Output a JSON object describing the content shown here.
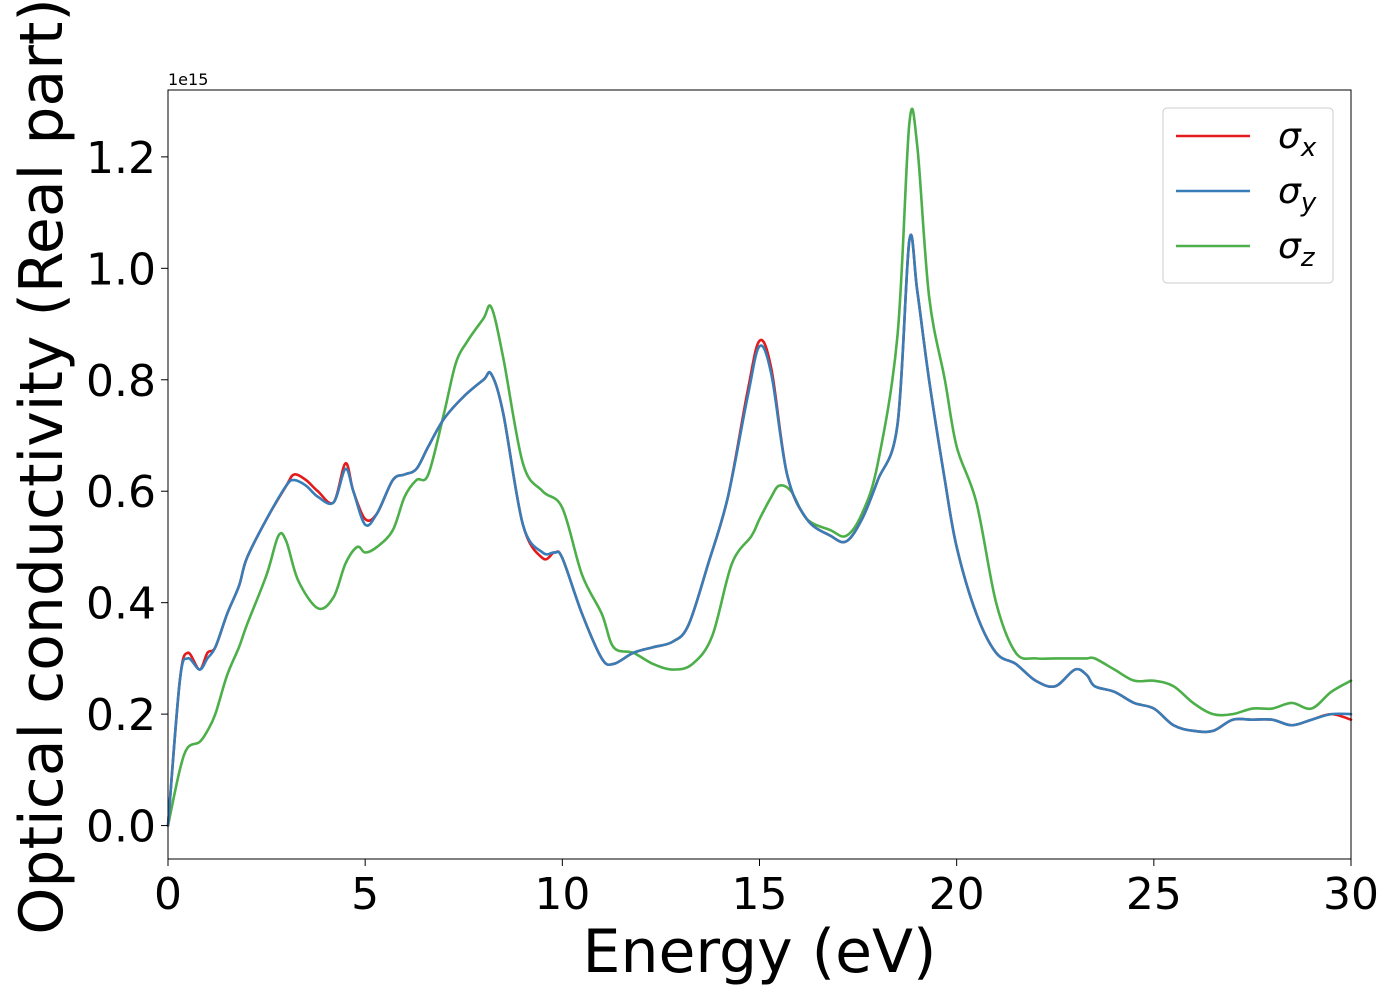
{
  "chart_data": {
    "type": "line",
    "xlabel": "Energy (eV)",
    "ylabel": "Optical conductivity (Real part)",
    "offset_text": "1e15",
    "xlim": [
      0,
      30
    ],
    "ylim": [
      -0.06,
      1.32
    ],
    "xticks": [
      0,
      5,
      10,
      15,
      20,
      25,
      30
    ],
    "xtick_labels": [
      "0",
      "5",
      "10",
      "15",
      "20",
      "25",
      "30"
    ],
    "yticks": [
      0.0,
      0.2,
      0.4,
      0.6,
      0.8,
      1.0,
      1.2
    ],
    "ytick_labels": [
      "0.0",
      "0.2",
      "0.4",
      "0.6",
      "0.8",
      "1.0",
      "1.2"
    ],
    "grid": false,
    "legend_position": "top-right",
    "series": [
      {
        "name": "σx",
        "symbol": "σ",
        "subscript": "x",
        "color": "#e41a1c",
        "x": [
          0,
          0.3,
          0.5,
          0.8,
          1.0,
          1.2,
          1.5,
          1.8,
          2.0,
          2.5,
          3.0,
          3.2,
          3.5,
          3.8,
          4.2,
          4.5,
          4.7,
          5.0,
          5.3,
          5.7,
          6.0,
          6.3,
          6.6,
          7.0,
          7.5,
          8.0,
          8.2,
          8.5,
          9.0,
          9.5,
          9.8,
          10.0,
          10.5,
          11.0,
          11.3,
          11.8,
          12.3,
          12.8,
          13.2,
          13.7,
          14.2,
          14.7,
          15.0,
          15.3,
          15.7,
          16.2,
          16.8,
          17.2,
          17.6,
          18.0,
          18.5,
          18.8,
          19.0,
          19.3,
          19.7,
          20.0,
          20.5,
          21.0,
          21.5,
          22.0,
          22.5,
          23.0,
          23.3,
          23.5,
          24.0,
          24.5,
          25.0,
          25.5,
          26.0,
          26.5,
          27.0,
          27.5,
          28.0,
          28.5,
          29.0,
          29.5,
          30.0
        ],
        "y": [
          0.0,
          0.26,
          0.31,
          0.28,
          0.31,
          0.32,
          0.38,
          0.43,
          0.48,
          0.55,
          0.61,
          0.63,
          0.62,
          0.6,
          0.58,
          0.65,
          0.6,
          0.55,
          0.56,
          0.62,
          0.63,
          0.64,
          0.68,
          0.73,
          0.77,
          0.8,
          0.81,
          0.74,
          0.54,
          0.48,
          0.49,
          0.48,
          0.38,
          0.3,
          0.29,
          0.31,
          0.32,
          0.33,
          0.36,
          0.47,
          0.59,
          0.78,
          0.87,
          0.82,
          0.63,
          0.55,
          0.52,
          0.51,
          0.55,
          0.62,
          0.72,
          1.05,
          0.96,
          0.8,
          0.62,
          0.5,
          0.38,
          0.31,
          0.29,
          0.26,
          0.25,
          0.28,
          0.27,
          0.25,
          0.24,
          0.22,
          0.21,
          0.18,
          0.17,
          0.17,
          0.19,
          0.19,
          0.19,
          0.18,
          0.19,
          0.2,
          0.19
        ]
      },
      {
        "name": "σy",
        "symbol": "σ",
        "subscript": "y",
        "color": "#377eb8",
        "x": [
          0,
          0.3,
          0.5,
          0.8,
          1.0,
          1.2,
          1.5,
          1.8,
          2.0,
          2.5,
          3.0,
          3.2,
          3.5,
          3.8,
          4.2,
          4.5,
          4.7,
          5.0,
          5.3,
          5.7,
          6.0,
          6.3,
          6.6,
          7.0,
          7.5,
          8.0,
          8.2,
          8.5,
          9.0,
          9.5,
          9.8,
          10.0,
          10.5,
          11.0,
          11.3,
          11.8,
          12.3,
          12.8,
          13.2,
          13.7,
          14.2,
          14.7,
          15.0,
          15.3,
          15.7,
          16.2,
          16.8,
          17.2,
          17.6,
          18.0,
          18.5,
          18.8,
          19.0,
          19.3,
          19.7,
          20.0,
          20.5,
          21.0,
          21.5,
          22.0,
          22.5,
          23.0,
          23.3,
          23.5,
          24.0,
          24.5,
          25.0,
          25.5,
          26.0,
          26.5,
          27.0,
          27.5,
          28.0,
          28.5,
          29.0,
          29.5,
          30.0
        ],
        "y": [
          0.0,
          0.26,
          0.3,
          0.28,
          0.3,
          0.32,
          0.38,
          0.43,
          0.48,
          0.55,
          0.61,
          0.62,
          0.61,
          0.59,
          0.58,
          0.64,
          0.6,
          0.54,
          0.56,
          0.62,
          0.63,
          0.64,
          0.68,
          0.73,
          0.77,
          0.8,
          0.81,
          0.74,
          0.54,
          0.49,
          0.49,
          0.48,
          0.38,
          0.3,
          0.29,
          0.31,
          0.32,
          0.33,
          0.36,
          0.47,
          0.59,
          0.77,
          0.86,
          0.81,
          0.63,
          0.55,
          0.52,
          0.51,
          0.55,
          0.62,
          0.72,
          1.05,
          0.96,
          0.8,
          0.62,
          0.5,
          0.38,
          0.31,
          0.29,
          0.26,
          0.25,
          0.28,
          0.27,
          0.25,
          0.24,
          0.22,
          0.21,
          0.18,
          0.17,
          0.17,
          0.19,
          0.19,
          0.19,
          0.18,
          0.19,
          0.2,
          0.2
        ]
      },
      {
        "name": "σz",
        "symbol": "σ",
        "subscript": "z",
        "color": "#4daf4a",
        "x": [
          0,
          0.3,
          0.5,
          0.8,
          1.0,
          1.2,
          1.5,
          1.8,
          2.0,
          2.5,
          2.8,
          3.0,
          3.3,
          3.8,
          4.2,
          4.5,
          4.8,
          5.0,
          5.3,
          5.7,
          6.0,
          6.3,
          6.6,
          7.0,
          7.3,
          7.6,
          8.0,
          8.2,
          8.5,
          9.0,
          9.5,
          10.0,
          10.5,
          11.0,
          11.3,
          11.8,
          12.3,
          12.8,
          13.3,
          13.8,
          14.3,
          14.8,
          15.0,
          15.3,
          15.5,
          15.8,
          16.2,
          16.8,
          17.2,
          17.6,
          18.0,
          18.5,
          18.8,
          19.0,
          19.3,
          19.7,
          20.0,
          20.5,
          21.0,
          21.5,
          22.0,
          22.5,
          23.0,
          23.3,
          23.5,
          24.0,
          24.5,
          25.0,
          25.5,
          26.0,
          26.5,
          27.0,
          27.5,
          28.0,
          28.5,
          29.0,
          29.5,
          30.0
        ],
        "y": [
          0.0,
          0.1,
          0.14,
          0.15,
          0.17,
          0.2,
          0.27,
          0.32,
          0.36,
          0.45,
          0.52,
          0.51,
          0.44,
          0.39,
          0.41,
          0.47,
          0.5,
          0.49,
          0.5,
          0.53,
          0.59,
          0.62,
          0.63,
          0.74,
          0.83,
          0.87,
          0.91,
          0.93,
          0.84,
          0.65,
          0.6,
          0.57,
          0.45,
          0.38,
          0.32,
          0.31,
          0.29,
          0.28,
          0.29,
          0.34,
          0.47,
          0.52,
          0.55,
          0.59,
          0.61,
          0.6,
          0.55,
          0.53,
          0.52,
          0.56,
          0.65,
          0.88,
          1.26,
          1.22,
          0.95,
          0.8,
          0.68,
          0.58,
          0.4,
          0.31,
          0.3,
          0.3,
          0.3,
          0.3,
          0.3,
          0.28,
          0.26,
          0.26,
          0.25,
          0.22,
          0.2,
          0.2,
          0.21,
          0.21,
          0.22,
          0.21,
          0.24,
          0.26
        ]
      }
    ]
  }
}
